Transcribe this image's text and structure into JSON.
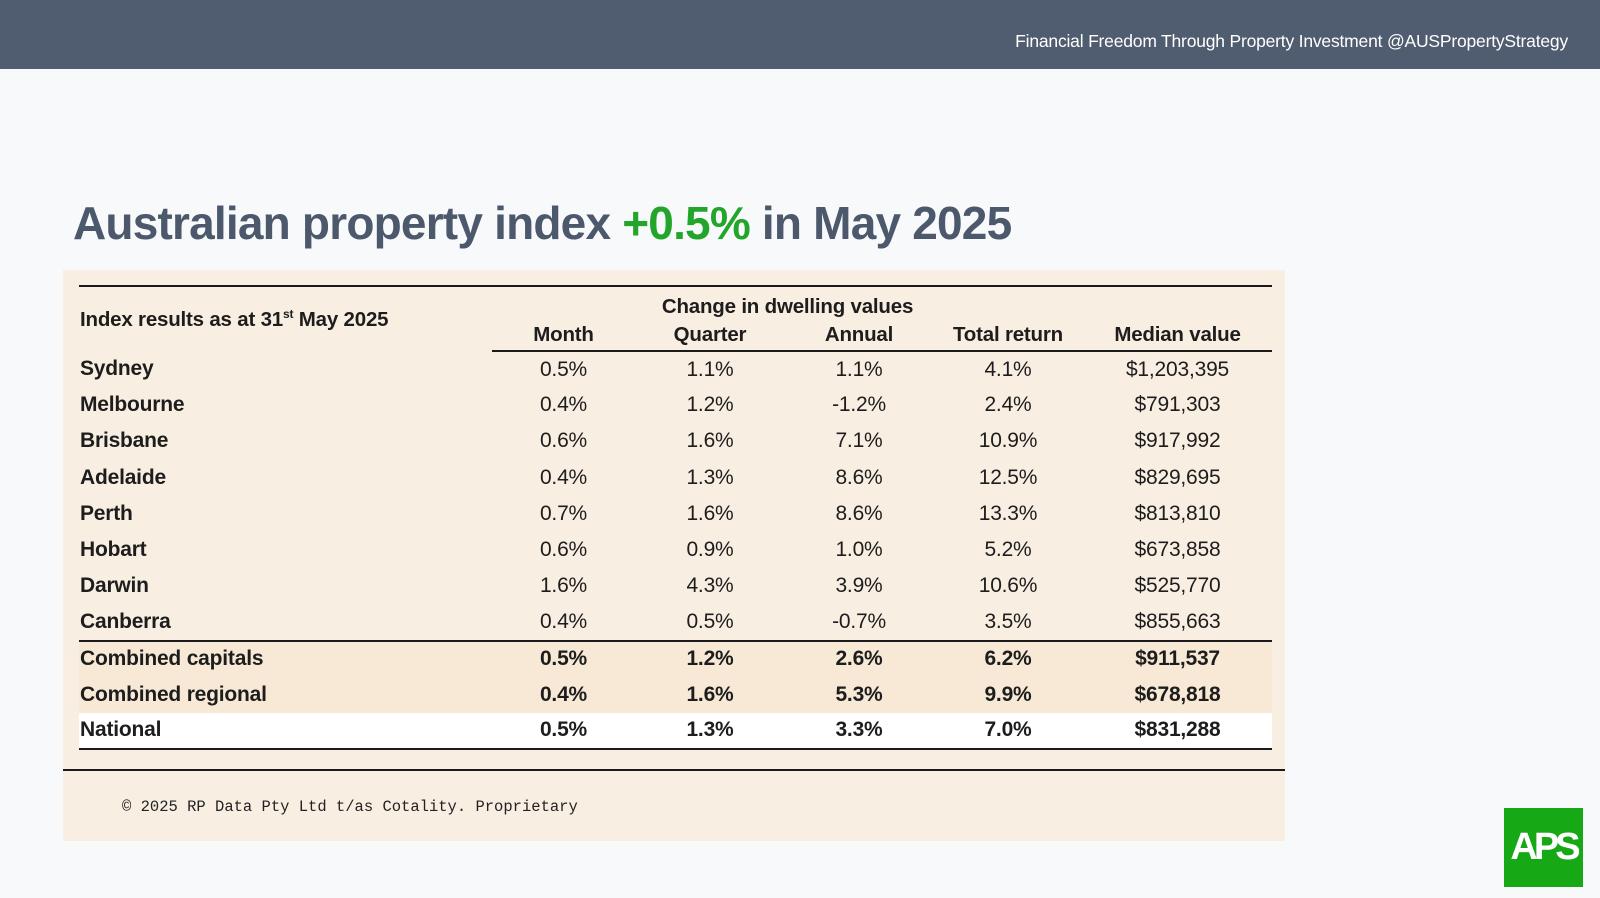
{
  "header": {
    "tagline": "Financial Freedom Through Property Investment @AUSPropertyStrategy"
  },
  "title": {
    "prefix": "Australian property index ",
    "accent": "+0.5%",
    "suffix": " in May 2025"
  },
  "colors": {
    "header_bg": "#505c6f",
    "title": "#4c586b",
    "accent": "#22a52a",
    "panel_bg": "#f9eee2",
    "logo_bg": "#17a816"
  },
  "table": {
    "index_label_pre": "Index results as at 31",
    "index_label_sup": "st",
    "index_label_post": " May 2025",
    "group_header": "Change in dwelling values",
    "columns": [
      "Month",
      "Quarter",
      "Annual",
      "Total return",
      "Median value"
    ],
    "rows": [
      {
        "city": "Sydney",
        "month": "0.5%",
        "quarter": "1.1%",
        "annual": "1.1%",
        "total": "4.1%",
        "median": "$1,203,395"
      },
      {
        "city": "Melbourne",
        "month": "0.4%",
        "quarter": "1.2%",
        "annual": "-1.2%",
        "total": "2.4%",
        "median": "$791,303"
      },
      {
        "city": "Brisbane",
        "month": "0.6%",
        "quarter": "1.6%",
        "annual": "7.1%",
        "total": "10.9%",
        "median": "$917,992"
      },
      {
        "city": "Adelaide",
        "month": "0.4%",
        "quarter": "1.3%",
        "annual": "8.6%",
        "total": "12.5%",
        "median": "$829,695"
      },
      {
        "city": "Perth",
        "month": "0.7%",
        "quarter": "1.6%",
        "annual": "8.6%",
        "total": "13.3%",
        "median": "$813,810"
      },
      {
        "city": "Hobart",
        "month": "0.6%",
        "quarter": "0.9%",
        "annual": "1.0%",
        "total": "5.2%",
        "median": "$673,858"
      },
      {
        "city": "Darwin",
        "month": "1.6%",
        "quarter": "4.3%",
        "annual": "3.9%",
        "total": "10.6%",
        "median": "$525,770"
      },
      {
        "city": "Canberra",
        "month": "0.4%",
        "quarter": "0.5%",
        "annual": "-0.7%",
        "total": "3.5%",
        "median": "$855,663"
      }
    ],
    "summary": [
      {
        "city": "Combined capitals",
        "month": "0.5%",
        "quarter": "1.2%",
        "annual": "2.6%",
        "total": "6.2%",
        "median": "$911,537"
      },
      {
        "city": "Combined regional",
        "month": "0.4%",
        "quarter": "1.6%",
        "annual": "5.3%",
        "total": "9.9%",
        "median": "$678,818"
      }
    ],
    "national": {
      "city": "National",
      "month": "0.5%",
      "quarter": "1.3%",
      "annual": "3.3%",
      "total": "7.0%",
      "median": "$831,288"
    }
  },
  "footer": {
    "copyright": "© 2025 RP Data Pty Ltd t/as Cotality. Proprietary"
  },
  "logo": {
    "text": "APS"
  }
}
